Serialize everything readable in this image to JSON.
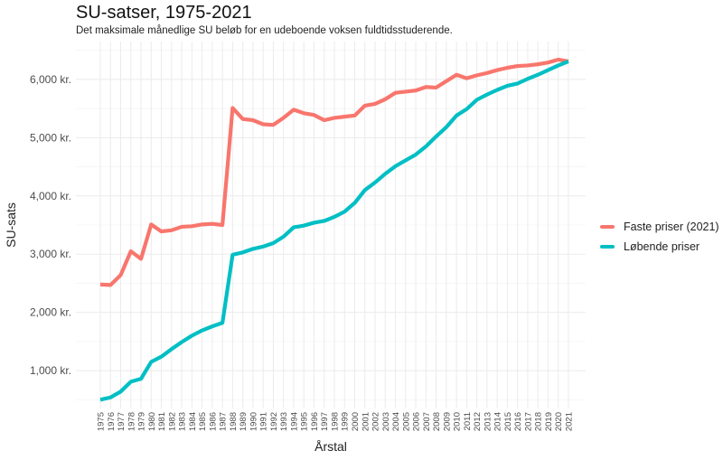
{
  "chart_data": {
    "type": "line",
    "title": "SU-satser, 1975-2021",
    "subtitle": "Det maksimale månedlige SU beløb for en udeboende voksen fuldtidsstuderende.",
    "xlabel": "Årstal",
    "ylabel": "SU-sats",
    "x": [
      "1975",
      "1976",
      "1977",
      "1978",
      "1979",
      "1980",
      "1981",
      "1982",
      "1983",
      "1984",
      "1985",
      "1986",
      "1987",
      "1988",
      "1989",
      "1990",
      "1991",
      "1992",
      "1993",
      "1994",
      "1995",
      "1996",
      "1997",
      "1998",
      "1999",
      "2000",
      "2001",
      "2002",
      "2003",
      "2004",
      "2005",
      "2006",
      "2007",
      "2008",
      "2009",
      "2010",
      "2011",
      "2012",
      "2013",
      "2014",
      "2015",
      "2016",
      "2017",
      "2018",
      "2019",
      "2020",
      "2021"
    ],
    "ylim": [
      350,
      6650
    ],
    "yticks": [
      1000,
      2000,
      3000,
      4000,
      5000,
      6000
    ],
    "ytick_labels": [
      "1,000 kr.",
      "2,000 kr.",
      "3,000 kr.",
      "4,000 kr.",
      "5,000 kr.",
      "6,000 kr."
    ],
    "grid": true,
    "legend_position": "right",
    "series": [
      {
        "name": "Faste priser (2021)",
        "color": "#F8766D",
        "values": [
          2480,
          2470,
          2640,
          3050,
          2920,
          3510,
          3390,
          3410,
          3470,
          3480,
          3510,
          3520,
          3500,
          5510,
          5320,
          5300,
          5230,
          5220,
          5340,
          5480,
          5420,
          5390,
          5300,
          5340,
          5360,
          5380,
          5550,
          5580,
          5660,
          5770,
          5790,
          5810,
          5870,
          5860,
          5970,
          6080,
          6020,
          6070,
          6110,
          6160,
          6200,
          6230,
          6240,
          6260,
          6290,
          6340,
          6310
        ]
      },
      {
        "name": "Løbende priser",
        "color": "#00BFC4",
        "values": [
          500,
          540,
          640,
          810,
          860,
          1150,
          1240,
          1370,
          1490,
          1600,
          1690,
          1760,
          1820,
          2990,
          3030,
          3090,
          3130,
          3190,
          3300,
          3460,
          3490,
          3540,
          3570,
          3640,
          3730,
          3880,
          4100,
          4230,
          4380,
          4510,
          4610,
          4710,
          4850,
          5020,
          5180,
          5380,
          5490,
          5650,
          5740,
          5820,
          5890,
          5930,
          6010,
          6080,
          6160,
          6240,
          6310
        ]
      }
    ]
  }
}
